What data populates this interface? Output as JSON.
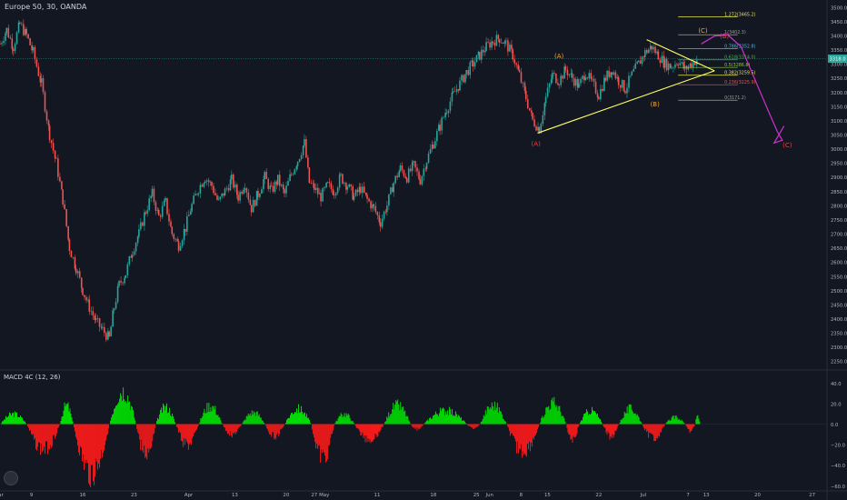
{
  "header": {
    "symbol": "Europe 50, 30, OANDA"
  },
  "macd_panel": {
    "title": "MACD 4C (12, 26)"
  },
  "colors": {
    "background": "#131722",
    "up_candle": "#26a69a",
    "down_candle": "#ef5350",
    "macd_up": "#00e600",
    "macd_down": "#ff1a1a",
    "trendline": "#ffff66",
    "projection": "#cc33cc",
    "current_price_line": "#26a69a"
  },
  "chart_data": [
    {
      "type": "candlestick",
      "title": "Europe 50, 30, OANDA",
      "x_ticks": [
        "ar",
        "9",
        "16",
        "23",
        "Apr",
        "13",
        "20",
        "27",
        "May",
        "11",
        "18",
        "25",
        "Jun",
        "8",
        "15",
        "22",
        "Jul",
        "7",
        "13",
        "20",
        "27"
      ],
      "y_ticks": [
        3500,
        3450,
        3400,
        3350,
        3300,
        3250,
        3200,
        3150,
        3100,
        3050,
        3000,
        2950,
        2900,
        2850,
        2800,
        2750,
        2700,
        2650,
        2600,
        2550,
        2500,
        2450,
        2400,
        2350,
        2300,
        2250
      ],
      "ylim": [
        2225,
        3525
      ],
      "current_price": {
        "value": 3318.0,
        "label": "3318.0"
      },
      "price_path": [
        {
          "x": 0,
          "y": 3370
        },
        {
          "x": 0.4,
          "y": 3420
        },
        {
          "x": 0.8,
          "y": 3360
        },
        {
          "x": 1.2,
          "y": 3440
        },
        {
          "x": 1.6,
          "y": 3400
        },
        {
          "x": 2.0,
          "y": 3340
        },
        {
          "x": 2.5,
          "y": 3230
        },
        {
          "x": 3.0,
          "y": 3050
        },
        {
          "x": 3.4,
          "y": 2950
        },
        {
          "x": 3.8,
          "y": 2820
        },
        {
          "x": 4.2,
          "y": 2650
        },
        {
          "x": 4.6,
          "y": 2580
        },
        {
          "x": 5.0,
          "y": 2500
        },
        {
          "x": 5.4,
          "y": 2440
        },
        {
          "x": 5.8,
          "y": 2390
        },
        {
          "x": 6.2,
          "y": 2360
        },
        {
          "x": 6.6,
          "y": 2330
        },
        {
          "x": 6.9,
          "y": 2440
        },
        {
          "x": 7.2,
          "y": 2520
        },
        {
          "x": 7.6,
          "y": 2560
        },
        {
          "x": 8.0,
          "y": 2640
        },
        {
          "x": 8.4,
          "y": 2700
        },
        {
          "x": 8.8,
          "y": 2780
        },
        {
          "x": 9.2,
          "y": 2840
        },
        {
          "x": 9.6,
          "y": 2760
        },
        {
          "x": 10.0,
          "y": 2810
        },
        {
          "x": 10.4,
          "y": 2700
        },
        {
          "x": 10.8,
          "y": 2660
        },
        {
          "x": 11.2,
          "y": 2720
        },
        {
          "x": 11.6,
          "y": 2800
        },
        {
          "x": 12.0,
          "y": 2860
        },
        {
          "x": 12.4,
          "y": 2900
        },
        {
          "x": 12.8,
          "y": 2870
        },
        {
          "x": 13.2,
          "y": 2810
        },
        {
          "x": 13.6,
          "y": 2850
        },
        {
          "x": 14.0,
          "y": 2890
        },
        {
          "x": 14.4,
          "y": 2830
        },
        {
          "x": 14.8,
          "y": 2880
        },
        {
          "x": 15.2,
          "y": 2790
        },
        {
          "x": 15.6,
          "y": 2840
        },
        {
          "x": 16.0,
          "y": 2900
        },
        {
          "x": 16.4,
          "y": 2850
        },
        {
          "x": 16.8,
          "y": 2890
        },
        {
          "x": 17.2,
          "y": 2840
        },
        {
          "x": 17.6,
          "y": 2910
        },
        {
          "x": 18.0,
          "y": 2960
        },
        {
          "x": 18.4,
          "y": 3020
        },
        {
          "x": 18.7,
          "y": 2880
        },
        {
          "x": 19.0,
          "y": 2860
        },
        {
          "x": 19.4,
          "y": 2830
        },
        {
          "x": 19.8,
          "y": 2870
        },
        {
          "x": 20.2,
          "y": 2850
        },
        {
          "x": 20.6,
          "y": 2900
        },
        {
          "x": 21.0,
          "y": 2870
        },
        {
          "x": 21.4,
          "y": 2830
        },
        {
          "x": 21.8,
          "y": 2860
        },
        {
          "x": 22.2,
          "y": 2820
        },
        {
          "x": 22.6,
          "y": 2790
        },
        {
          "x": 23.0,
          "y": 2740
        },
        {
          "x": 23.4,
          "y": 2800
        },
        {
          "x": 23.8,
          "y": 2880
        },
        {
          "x": 24.2,
          "y": 2930
        },
        {
          "x": 24.6,
          "y": 2900
        },
        {
          "x": 25.0,
          "y": 2940
        },
        {
          "x": 25.4,
          "y": 2890
        },
        {
          "x": 25.8,
          "y": 2960
        },
        {
          "x": 26.2,
          "y": 3020
        },
        {
          "x": 26.6,
          "y": 3080
        },
        {
          "x": 27.0,
          "y": 3140
        },
        {
          "x": 27.4,
          "y": 3190
        },
        {
          "x": 27.8,
          "y": 3230
        },
        {
          "x": 28.2,
          "y": 3270
        },
        {
          "x": 28.6,
          "y": 3300
        },
        {
          "x": 29.0,
          "y": 3330
        },
        {
          "x": 29.4,
          "y": 3360
        },
        {
          "x": 29.8,
          "y": 3380
        },
        {
          "x": 30.2,
          "y": 3390
        },
        {
          "x": 30.6,
          "y": 3370
        },
        {
          "x": 31.0,
          "y": 3330
        },
        {
          "x": 31.4,
          "y": 3260
        },
        {
          "x": 31.8,
          "y": 3180
        },
        {
          "x": 32.2,
          "y": 3100
        },
        {
          "x": 32.6,
          "y": 3070
        },
        {
          "x": 33.0,
          "y": 3180
        },
        {
          "x": 33.4,
          "y": 3260
        },
        {
          "x": 33.8,
          "y": 3240
        },
        {
          "x": 34.2,
          "y": 3280
        },
        {
          "x": 34.6,
          "y": 3250
        },
        {
          "x": 35.0,
          "y": 3220
        },
        {
          "x": 35.4,
          "y": 3270
        },
        {
          "x": 35.8,
          "y": 3230
        },
        {
          "x": 36.2,
          "y": 3190
        },
        {
          "x": 36.6,
          "y": 3250
        },
        {
          "x": 37.0,
          "y": 3280
        },
        {
          "x": 37.4,
          "y": 3240
        },
        {
          "x": 37.8,
          "y": 3210
        },
        {
          "x": 38.2,
          "y": 3260
        },
        {
          "x": 38.6,
          "y": 3300
        },
        {
          "x": 39.0,
          "y": 3340
        },
        {
          "x": 39.4,
          "y": 3360
        },
        {
          "x": 39.8,
          "y": 3330
        },
        {
          "x": 40.2,
          "y": 3300
        },
        {
          "x": 40.6,
          "y": 3290
        },
        {
          "x": 41.0,
          "y": 3310
        },
        {
          "x": 41.4,
          "y": 3280
        },
        {
          "x": 41.8,
          "y": 3300
        },
        {
          "x": 42.2,
          "y": 3318
        }
      ],
      "fib_levels": [
        {
          "ratio": "1.272",
          "value": 3465.2,
          "label": "1.272(3465.2)"
        },
        {
          "ratio": "1",
          "value": 3402.3,
          "label": "1(3402.3)"
        },
        {
          "ratio": "0.786",
          "value": 3352.8,
          "label": "0.786(3352.8)"
        },
        {
          "ratio": "0.618",
          "value": 3314.0,
          "label": "0.618(3314.0)"
        },
        {
          "ratio": "0.5",
          "value": 3286.8,
          "label": "0.5(3286.8)"
        },
        {
          "ratio": "0.382",
          "value": 3259.5,
          "label": "0.382(3259.5)"
        },
        {
          "ratio": "0.236",
          "value": 3225.9,
          "label": "0.236(3225.9)"
        },
        {
          "ratio": "0",
          "value": 3171.2,
          "label": "0(3171.2)"
        }
      ],
      "annotations": [
        {
          "text": "(A)",
          "x": 32.4,
          "y": 3010,
          "color": "#ff3b3b"
        },
        {
          "text": "(A)",
          "x": 33.8,
          "y": 3320,
          "color": "#ffa726"
        },
        {
          "text": "(B)",
          "x": 39.6,
          "y": 3150,
          "color": "#ffa726"
        },
        {
          "text": "(C)",
          "x": 42.5,
          "y": 3410,
          "color": "#ffa726"
        },
        {
          "text": "(B)",
          "x": 43.8,
          "y": 3390,
          "color": "#ff3b3b"
        },
        {
          "text": "(C)",
          "x": 47.6,
          "y": 3005,
          "color": "#ff3b3b"
        }
      ],
      "trendlines": [
        {
          "from": [
            32.5,
            3055
          ],
          "to": [
            43.2,
            3275
          ]
        },
        {
          "from": [
            39.1,
            3385
          ],
          "to": [
            43.2,
            3275
          ]
        }
      ],
      "projection": [
        [
          42.4,
          3370
        ],
        [
          43.2,
          3398
        ],
        [
          44.0,
          3402
        ],
        [
          44.8,
          3360
        ],
        [
          45.6,
          3250
        ],
        [
          46.4,
          3140
        ],
        [
          47.0,
          3060
        ],
        [
          47.3,
          3030
        ],
        [
          46.8,
          3020
        ],
        [
          47.4,
          3080
        ]
      ],
      "x_max": 50
    },
    {
      "type": "bar",
      "title": "MACD 4C (12, 26)",
      "y_ticks": [
        40.0,
        20.0,
        0.0,
        -20.0,
        -40.0,
        -60.0
      ],
      "y_tick_labels": [
        "40.0",
        "20.0",
        "0.0",
        "−20.0",
        "−40.0",
        "−60.0"
      ],
      "ylim": [
        -65,
        50
      ],
      "segments": [
        {
          "x0": 0.0,
          "x1": 1.6,
          "peak": 12
        },
        {
          "x0": 1.6,
          "x1": 3.6,
          "peak": -30
        },
        {
          "x0": 3.6,
          "x1": 4.4,
          "peak": 22
        },
        {
          "x0": 4.4,
          "x1": 6.6,
          "peak": -58
        },
        {
          "x0": 6.6,
          "x1": 8.2,
          "peak": 40
        },
        {
          "x0": 8.2,
          "x1": 9.4,
          "peak": -35
        },
        {
          "x0": 9.4,
          "x1": 10.6,
          "peak": 20
        },
        {
          "x0": 10.6,
          "x1": 12.0,
          "peak": -25
        },
        {
          "x0": 12.0,
          "x1": 13.4,
          "peak": 22
        },
        {
          "x0": 13.4,
          "x1": 14.6,
          "peak": -12
        },
        {
          "x0": 14.6,
          "x1": 16.0,
          "peak": 14
        },
        {
          "x0": 16.0,
          "x1": 17.2,
          "peak": -14
        },
        {
          "x0": 17.2,
          "x1": 18.8,
          "peak": 18
        },
        {
          "x0": 18.8,
          "x1": 20.2,
          "peak": -40
        },
        {
          "x0": 20.2,
          "x1": 21.4,
          "peak": 12
        },
        {
          "x0": 21.4,
          "x1": 23.2,
          "peak": -18
        },
        {
          "x0": 23.2,
          "x1": 24.8,
          "peak": 22
        },
        {
          "x0": 24.8,
          "x1": 25.6,
          "peak": -6
        },
        {
          "x0": 25.6,
          "x1": 28.2,
          "peak": 16
        },
        {
          "x0": 28.2,
          "x1": 29.0,
          "peak": -5
        },
        {
          "x0": 29.0,
          "x1": 30.6,
          "peak": 22
        },
        {
          "x0": 30.6,
          "x1": 32.6,
          "peak": -32
        },
        {
          "x0": 32.6,
          "x1": 34.2,
          "peak": 25
        },
        {
          "x0": 34.2,
          "x1": 35.0,
          "peak": -18
        },
        {
          "x0": 35.0,
          "x1": 36.4,
          "peak": 16
        },
        {
          "x0": 36.4,
          "x1": 37.4,
          "peak": -14
        },
        {
          "x0": 37.4,
          "x1": 38.8,
          "peak": 18
        },
        {
          "x0": 38.8,
          "x1": 40.2,
          "peak": -16
        },
        {
          "x0": 40.2,
          "x1": 41.4,
          "peak": 8
        },
        {
          "x0": 41.4,
          "x1": 42.0,
          "peak": -8
        },
        {
          "x0": 42.0,
          "x1": 42.3,
          "peak": 10
        }
      ]
    }
  ]
}
